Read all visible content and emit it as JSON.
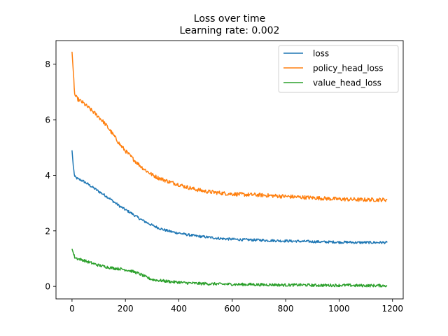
{
  "chart_data": {
    "type": "line",
    "title": "Loss over time",
    "subtitle": "Learning rate: 0.002",
    "xlabel": "",
    "ylabel": "",
    "xlim": [
      -60,
      1240
    ],
    "ylim": [
      -0.45,
      8.85
    ],
    "xticks": [
      0,
      200,
      400,
      600,
      800,
      1000,
      1200
    ],
    "yticks": [
      0,
      2,
      4,
      6,
      8
    ],
    "grid": false,
    "legend_position": "top-right",
    "x": [
      0,
      5,
      10,
      20,
      40,
      60,
      80,
      100,
      120,
      140,
      160,
      180,
      200,
      220,
      240,
      260,
      280,
      300,
      320,
      340,
      360,
      380,
      400,
      420,
      440,
      460,
      480,
      500,
      520,
      540,
      560,
      580,
      600,
      620,
      640,
      660,
      680,
      700,
      720,
      740,
      760,
      780,
      800,
      820,
      840,
      860,
      880,
      900,
      920,
      940,
      960,
      980,
      1000,
      1020,
      1040,
      1060,
      1080,
      1100,
      1120,
      1140,
      1160,
      1180
    ],
    "series": [
      {
        "name": "loss",
        "color": "#1f77b4",
        "values": [
          4.9,
          4.3,
          3.95,
          3.88,
          3.8,
          3.68,
          3.55,
          3.42,
          3.3,
          3.17,
          3.02,
          2.88,
          2.76,
          2.65,
          2.52,
          2.4,
          2.3,
          2.2,
          2.12,
          2.05,
          2.0,
          1.95,
          1.92,
          1.88,
          1.85,
          1.82,
          1.8,
          1.78,
          1.76,
          1.74,
          1.72,
          1.71,
          1.7,
          1.69,
          1.68,
          1.68,
          1.67,
          1.67,
          1.66,
          1.65,
          1.65,
          1.64,
          1.64,
          1.63,
          1.63,
          1.62,
          1.62,
          1.61,
          1.61,
          1.6,
          1.6,
          1.6,
          1.59,
          1.59,
          1.59,
          1.58,
          1.58,
          1.58,
          1.58,
          1.58,
          1.58,
          1.58
        ]
      },
      {
        "name": "policy_head_loss",
        "color": "#ff7f0e",
        "values": [
          8.45,
          7.7,
          6.9,
          6.75,
          6.62,
          6.45,
          6.28,
          6.1,
          5.9,
          5.65,
          5.38,
          5.1,
          4.88,
          4.68,
          4.48,
          4.3,
          4.15,
          4.02,
          3.92,
          3.85,
          3.78,
          3.72,
          3.67,
          3.6,
          3.55,
          3.5,
          3.46,
          3.42,
          3.4,
          3.38,
          3.36,
          3.34,
          3.33,
          3.32,
          3.31,
          3.3,
          3.3,
          3.29,
          3.28,
          3.27,
          3.26,
          3.25,
          3.24,
          3.23,
          3.22,
          3.21,
          3.2,
          3.19,
          3.18,
          3.17,
          3.16,
          3.15,
          3.14,
          3.14,
          3.13,
          3.13,
          3.12,
          3.12,
          3.12,
          3.12,
          3.12,
          3.12
        ]
      },
      {
        "name": "value_head_loss",
        "color": "#2ca02c",
        "values": [
          1.35,
          1.2,
          1.05,
          1.0,
          0.95,
          0.88,
          0.82,
          0.76,
          0.72,
          0.68,
          0.65,
          0.63,
          0.6,
          0.56,
          0.5,
          0.42,
          0.32,
          0.25,
          0.22,
          0.2,
          0.18,
          0.16,
          0.15,
          0.13,
          0.12,
          0.11,
          0.1,
          0.1,
          0.09,
          0.09,
          0.08,
          0.08,
          0.08,
          0.07,
          0.07,
          0.07,
          0.07,
          0.06,
          0.06,
          0.06,
          0.06,
          0.05,
          0.05,
          0.05,
          0.05,
          0.05,
          0.05,
          0.04,
          0.04,
          0.04,
          0.04,
          0.04,
          0.04,
          0.04,
          0.04,
          0.03,
          0.03,
          0.03,
          0.03,
          0.03,
          0.03,
          0.03
        ]
      }
    ]
  }
}
